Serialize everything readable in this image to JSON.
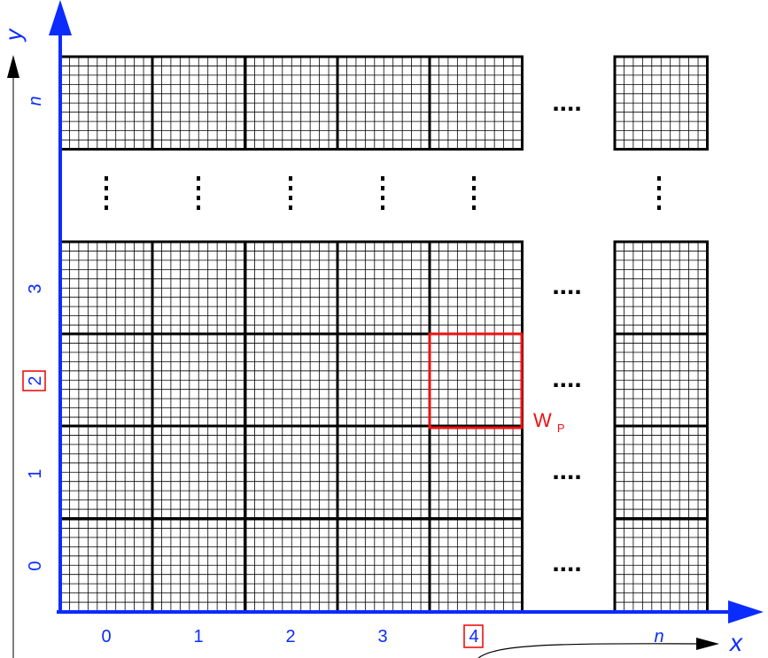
{
  "axes": {
    "x_label": "x",
    "y_label": "y",
    "x_ticks": [
      "0",
      "1",
      "2",
      "3",
      "4",
      "n"
    ],
    "y_ticks": [
      "0",
      "1",
      "2",
      "3",
      "n"
    ],
    "highlighted_x_tick": "4",
    "highlighted_y_tick": "2",
    "axis_color": "#0a2cff"
  },
  "window": {
    "label_main": "W",
    "label_sub": "P",
    "color": "#ee1111"
  },
  "ellipsis_h": "....",
  "ellipsis_v": "⋮",
  "grid_color": "#000000"
}
